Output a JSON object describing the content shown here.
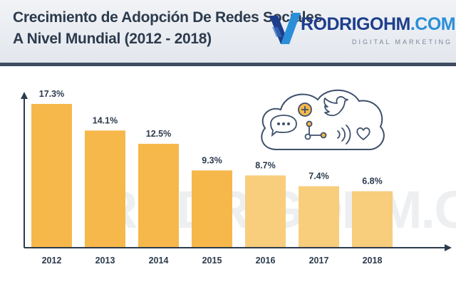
{
  "header": {
    "title_line1": "Crecimiento de Adopción De Redes Sociales",
    "title_line2": "A Nivel Mundial (2012 - 2018)"
  },
  "brand": {
    "name_main": "RODRIGOHM",
    "name_suffix": ".COM",
    "tagline": "DIGITAL MARKETING",
    "watermark": "RODRIGOHM.COM"
  },
  "colors": {
    "header_bg": "#e8ebf0",
    "divider": "#3f4d62",
    "bar_primary": "#f6b84a",
    "bar_light": "#f8cd7c",
    "axis": "#2c3b4d",
    "icon_stroke": "#3d4f6b",
    "icon_accent": "#f6b84a"
  },
  "icons": [
    "cloud-icon",
    "plus-icon",
    "bird-icon",
    "chat-bubble-icon",
    "share-icon",
    "signal-icon",
    "heart-icon"
  ],
  "chart_data": {
    "type": "bar",
    "title": "Crecimiento de Adopción De Redes Sociales A Nivel Mundial (2012 - 2018)",
    "xlabel": "",
    "ylabel": "",
    "ylim": [
      0,
      18.5
    ],
    "grid": false,
    "categories": [
      "2012",
      "2013",
      "2014",
      "2015",
      "2016",
      "2017",
      "2018"
    ],
    "values": [
      17.3,
      14.1,
      12.5,
      9.3,
      8.7,
      7.4,
      6.8
    ],
    "value_labels": [
      "17.3%",
      "14.1%",
      "12.5%",
      "9.3%",
      "8.7%",
      "7.4%",
      "6.8%"
    ]
  }
}
